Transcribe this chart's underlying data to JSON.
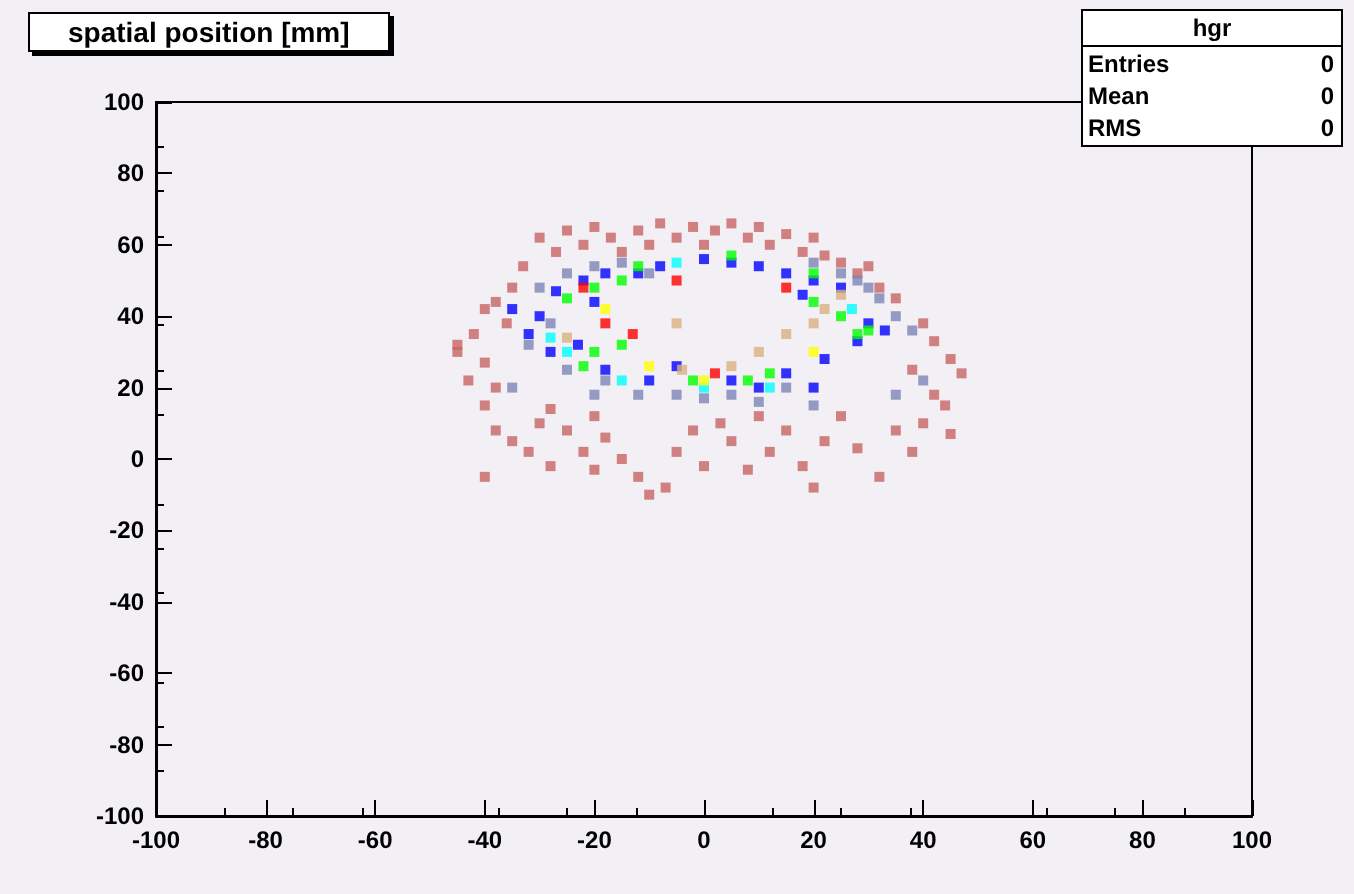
{
  "chart_data": {
    "type": "scatter",
    "title": "spatial position [mm]",
    "annotations": [
      "hgr",
      "Entries",
      "0",
      "Mean",
      "0",
      "RMS",
      "0"
    ],
    "xlim": [
      -100,
      100
    ],
    "xticks": [
      -100,
      -80,
      -60,
      -40,
      -20,
      0,
      20,
      40,
      60,
      80,
      100
    ],
    "ylim": [
      -100,
      100
    ],
    "yticks": [
      -100,
      -80,
      -60,
      -40,
      -20,
      0,
      20,
      40,
      60,
      80,
      100
    ],
    "grid": false,
    "marker": "square",
    "series": [
      {
        "color": "#c86464",
        "x": [
          -30,
          -27,
          -25,
          -22,
          -20,
          -17,
          -15,
          -12,
          -10,
          -8,
          -5,
          -2,
          0,
          2,
          5,
          8,
          10,
          12,
          15,
          18,
          20,
          22,
          25,
          28,
          30,
          32,
          35,
          -33,
          -35,
          -38,
          -40,
          -36,
          -42,
          -45,
          -40,
          -43,
          -38,
          -45,
          40,
          42,
          45,
          38,
          47,
          42,
          44,
          40,
          -40,
          -38,
          -35,
          -40,
          -32,
          -30,
          -28,
          -25,
          -22,
          -20,
          -18,
          -15,
          -12,
          -10,
          -7,
          -5,
          -2,
          0,
          3,
          5,
          8,
          10,
          12,
          15,
          18,
          20,
          22,
          25,
          28,
          32,
          35,
          38,
          -20,
          -28,
          45
        ],
        "values": [
          62,
          58,
          64,
          60,
          65,
          62,
          58,
          64,
          60,
          66,
          62,
          65,
          60,
          64,
          66,
          62,
          65,
          60,
          63,
          58,
          62,
          57,
          55,
          52,
          54,
          48,
          45,
          54,
          48,
          44,
          42,
          38,
          35,
          30,
          27,
          22,
          20,
          32,
          38,
          33,
          28,
          25,
          24,
          18,
          15,
          10,
          15,
          8,
          5,
          -5,
          2,
          10,
          14,
          8,
          2,
          12,
          6,
          0,
          -5,
          -10,
          -8,
          2,
          8,
          -2,
          10,
          5,
          -3,
          12,
          2,
          8,
          -2,
          -8,
          5,
          12,
          3,
          -5,
          8,
          2,
          -3,
          -2,
          7
        ]
      },
      {
        "color": "#7c84b4",
        "x": [
          -30,
          -25,
          -20,
          -15,
          -10,
          -28,
          -32,
          -25,
          -18,
          -12,
          -5,
          0,
          5,
          10,
          15,
          20,
          -35,
          28,
          32,
          35,
          38,
          30,
          25,
          20,
          40,
          35,
          -20
        ],
        "values": [
          48,
          52,
          54,
          55,
          52,
          38,
          32,
          25,
          22,
          18,
          18,
          17,
          18,
          16,
          20,
          15,
          20,
          50,
          45,
          40,
          36,
          48,
          52,
          55,
          22,
          18,
          18
        ]
      },
      {
        "color": "#0000ff",
        "x": [
          -30,
          -27,
          -22,
          -18,
          -12,
          -8,
          0,
          5,
          10,
          15,
          20,
          25,
          -32,
          -28,
          -23,
          -18,
          -10,
          -5,
          5,
          10,
          15,
          20,
          22,
          30,
          33,
          -35,
          -20,
          18,
          28
        ],
        "values": [
          40,
          47,
          50,
          52,
          52,
          54,
          56,
          55,
          54,
          52,
          50,
          48,
          35,
          30,
          32,
          25,
          22,
          26,
          22,
          20,
          24,
          20,
          28,
          38,
          36,
          42,
          44,
          46,
          33
        ]
      },
      {
        "color": "#00ff00",
        "x": [
          -25,
          -20,
          -15,
          -20,
          -22,
          -15,
          20,
          25,
          30,
          28,
          8,
          12,
          -2,
          5,
          20,
          -12
        ],
        "values": [
          45,
          48,
          50,
          30,
          26,
          32,
          44,
          40,
          36,
          35,
          22,
          24,
          22,
          57,
          52,
          54
        ]
      },
      {
        "color": "#00ffff",
        "x": [
          -28,
          -25,
          -15,
          12,
          0,
          -5,
          27
        ],
        "values": [
          34,
          30,
          22,
          20,
          20,
          55,
          42
        ]
      },
      {
        "color": "#ffff00",
        "x": [
          -18,
          -10,
          20,
          0
        ],
        "values": [
          42,
          26,
          30,
          22
        ]
      },
      {
        "color": "#ff0000",
        "x": [
          -18,
          -13,
          -22,
          -5,
          15,
          2
        ],
        "values": [
          38,
          35,
          48,
          50,
          48,
          24
        ]
      },
      {
        "color": "#d8b080",
        "x": [
          -5,
          -25,
          5,
          15,
          20,
          22,
          25,
          10,
          -4
        ],
        "values": [
          38,
          34,
          26,
          35,
          38,
          42,
          46,
          30,
          25
        ]
      }
    ]
  }
}
